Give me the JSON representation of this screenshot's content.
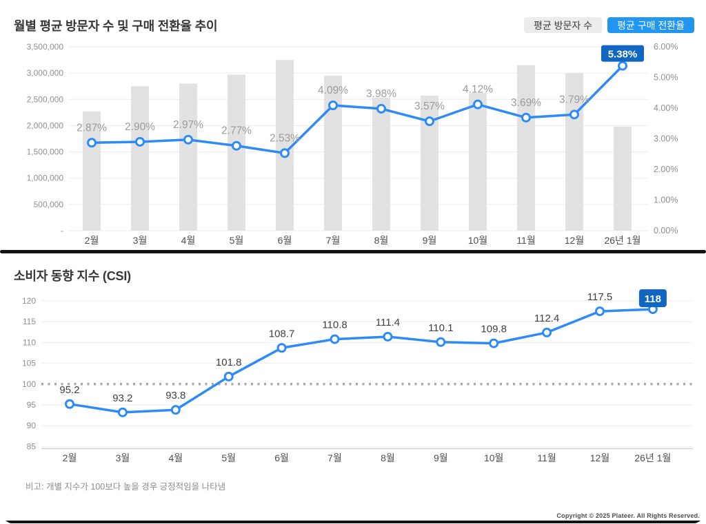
{
  "page": {
    "copyright": "Copyright © 2025 Plateer. All Rights Reserved."
  },
  "colors": {
    "line_blue": "#2e8af6",
    "legend_blue": "#2196f3",
    "badge_blue": "#1166c1",
    "bar_gray": "#e2e2e2",
    "grid": "#ededed",
    "axis_tick": "#8f8f8f",
    "month_label": "#4f4f4f",
    "top_data_label": "#9b9b9b",
    "csi_data_label": "#3f3f3f",
    "dotted_baseline": "#a8a8a8"
  },
  "chart_data": [
    {
      "id": "visitors-conversion",
      "type": "combo-bar-line",
      "title": "월별 평균 방문자 수 및 구매 전환율 추이",
      "legend_position": "top-right",
      "grid": true,
      "categories": [
        "2월",
        "3월",
        "4월",
        "5월",
        "6월",
        "7월",
        "8월",
        "9월",
        "10월",
        "11월",
        "12월",
        "26년 1월"
      ],
      "series": [
        {
          "name": "평균 방문자 수",
          "type": "bar",
          "axis": "left",
          "values": [
            2270000,
            2750000,
            2800000,
            2970000,
            3250000,
            2950000,
            2530000,
            2570000,
            2620000,
            3150000,
            3000000,
            1980000
          ]
        },
        {
          "name": "평균 구매 전환율",
          "type": "line",
          "axis": "right",
          "values": [
            2.87,
            2.9,
            2.97,
            2.77,
            2.53,
            4.09,
            3.98,
            3.57,
            4.12,
            3.69,
            3.79,
            5.38
          ],
          "labels": [
            "2.87%",
            "2.90%",
            "2.97%",
            "2.77%",
            "2.53%",
            "4.09%",
            "3.98%",
            "3.57%",
            "4.12%",
            "3.69%",
            "3.79%",
            "5.38%"
          ],
          "last_label_highlighted": true
        }
      ],
      "left_axis": {
        "min": 0,
        "max": 3500000,
        "tick_labels": [
          "3,500,000",
          "3,000,000",
          "2,500,000",
          "2,000,000",
          "1,500,000",
          "1,000,000",
          "500,000",
          "-"
        ]
      },
      "right_axis": {
        "min": 0,
        "max": 6,
        "tick_labels": [
          "6.00%",
          "5.00%",
          "4.00%",
          "3.00%",
          "2.00%",
          "1.00%",
          "0.00%"
        ]
      }
    },
    {
      "id": "csi",
      "type": "line",
      "title": "소비자 동향 지수 (CSI)",
      "grid": true,
      "categories": [
        "2월",
        "3월",
        "4월",
        "5월",
        "6월",
        "7월",
        "8월",
        "9월",
        "10월",
        "11월",
        "12월",
        "26년 1월"
      ],
      "values": [
        95.2,
        93.2,
        93.8,
        101.8,
        108.7,
        110.8,
        111.4,
        110.1,
        109.8,
        112.4,
        117.5,
        118
      ],
      "labels": [
        "95.2",
        "93.2",
        "93.8",
        "101.8",
        "108.7",
        "110.8",
        "111.4",
        "110.1",
        "109.8",
        "112.4",
        "117.5",
        "118"
      ],
      "last_label_highlighted": true,
      "baseline": 100,
      "ylim": [
        85,
        120
      ],
      "ytick_labels": [
        "120",
        "115",
        "110",
        "105",
        "100",
        "95",
        "90",
        "85"
      ],
      "note": "비고: 개별 지수가 100보다 높을 경우 긍정적임을 나타냄"
    }
  ]
}
